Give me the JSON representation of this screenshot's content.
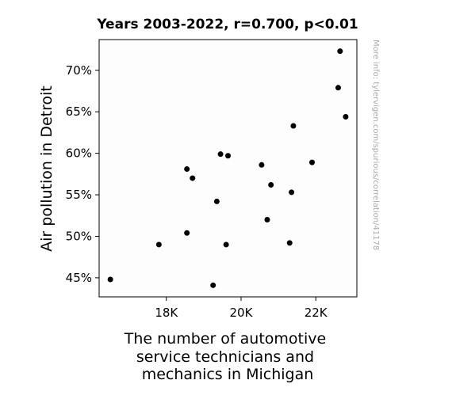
{
  "chart_data": {
    "type": "scatter",
    "title": "Years 2003-2022, r=0.700, p<0.01",
    "xlabel_lines": [
      "The number of automotive",
      "service technicians and",
      "mechanics in Michigan"
    ],
    "ylabel": "Air pollution in Detroit",
    "side_note": "More info: tylervigen.com/spurious/correlation/41178",
    "x_ticks": [
      {
        "value": 18000,
        "label": "18K"
      },
      {
        "value": 20000,
        "label": "20K"
      },
      {
        "value": 22000,
        "label": "22K"
      }
    ],
    "y_ticks": [
      {
        "value": 45,
        "label": "45%"
      },
      {
        "value": 50,
        "label": "50%"
      },
      {
        "value": 55,
        "label": "55%"
      },
      {
        "value": 60,
        "label": "60%"
      },
      {
        "value": 65,
        "label": "65%"
      },
      {
        "value": 70,
        "label": "70%"
      }
    ],
    "xlim": [
      16200,
      23100
    ],
    "ylim": [
      42.7,
      73.7
    ],
    "grid": false,
    "points": [
      {
        "x": 16500,
        "y": 44.8
      },
      {
        "x": 17800,
        "y": 49.0
      },
      {
        "x": 18550,
        "y": 50.4
      },
      {
        "x": 18550,
        "y": 58.1
      },
      {
        "x": 18700,
        "y": 57.0
      },
      {
        "x": 19250,
        "y": 44.1
      },
      {
        "x": 19350,
        "y": 54.2
      },
      {
        "x": 19450,
        "y": 59.9
      },
      {
        "x": 19600,
        "y": 49.0
      },
      {
        "x": 19650,
        "y": 59.7
      },
      {
        "x": 20550,
        "y": 58.6
      },
      {
        "x": 20700,
        "y": 52.0
      },
      {
        "x": 20800,
        "y": 56.2
      },
      {
        "x": 21300,
        "y": 49.2
      },
      {
        "x": 21350,
        "y": 55.3
      },
      {
        "x": 21400,
        "y": 63.3
      },
      {
        "x": 21900,
        "y": 58.9
      },
      {
        "x": 22600,
        "y": 67.9
      },
      {
        "x": 22650,
        "y": 72.3
      },
      {
        "x": 22800,
        "y": 64.4
      }
    ],
    "colors": {
      "marker": "#000000",
      "axis": "#000000",
      "note": "#aaaaaa"
    }
  }
}
